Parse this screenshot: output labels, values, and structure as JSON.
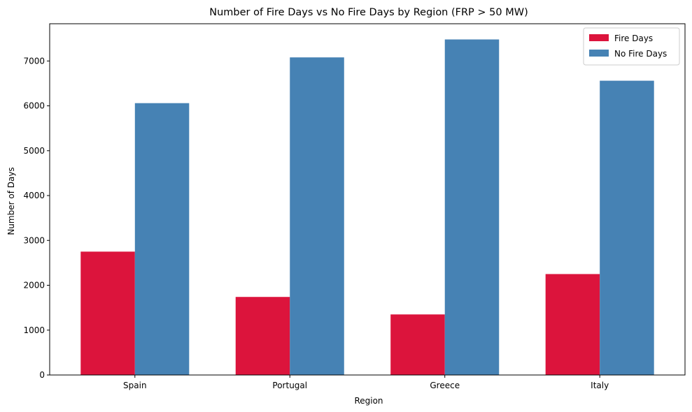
{
  "chart_data": {
    "type": "bar",
    "title": "Number of Fire Days vs No Fire Days by Region (FRP > 50 MW)",
    "xlabel": "Region",
    "ylabel": "Number of Days",
    "categories": [
      "Spain",
      "Portugal",
      "Greece",
      "Italy"
    ],
    "series": [
      {
        "name": "Fire Days",
        "color": "#dc143c",
        "values": [
          2750,
          1740,
          1350,
          2250
        ]
      },
      {
        "name": "No Fire Days",
        "color": "#4682b4",
        "values": [
          6060,
          7080,
          7480,
          6560
        ]
      }
    ],
    "ylim": [
      0,
      7830
    ],
    "yticks": [
      0,
      1000,
      2000,
      3000,
      4000,
      5000,
      6000,
      7000
    ],
    "grid": false,
    "legend_position": "top-right"
  }
}
